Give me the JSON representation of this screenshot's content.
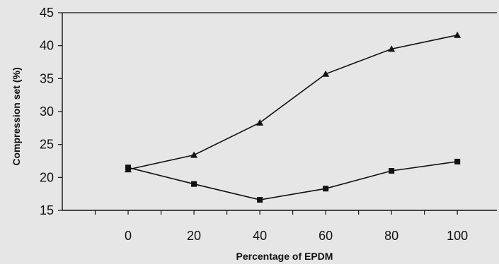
{
  "chart_data": {
    "type": "line",
    "xlabel": "Percentage of EPDM",
    "ylabel": "Compression set (%)",
    "x": [
      0,
      20,
      40,
      60,
      80,
      100
    ],
    "xticks": [
      "0",
      "20",
      "40",
      "60",
      "80",
      "100"
    ],
    "yticks": [
      "15",
      "20",
      "25",
      "30",
      "35",
      "40",
      "45"
    ],
    "ylim": [
      15,
      45
    ],
    "xlim": [
      -20,
      112
    ],
    "grid": false,
    "series": [
      {
        "marker": "triangle",
        "values": [
          21.2,
          23.4,
          28.3,
          35.7,
          39.5,
          41.6
        ]
      },
      {
        "marker": "square",
        "values": [
          21.5,
          19.0,
          16.6,
          18.3,
          21.0,
          22.4
        ]
      }
    ],
    "colors": {
      "line": "#111111",
      "background": "#e6e6e6"
    }
  }
}
